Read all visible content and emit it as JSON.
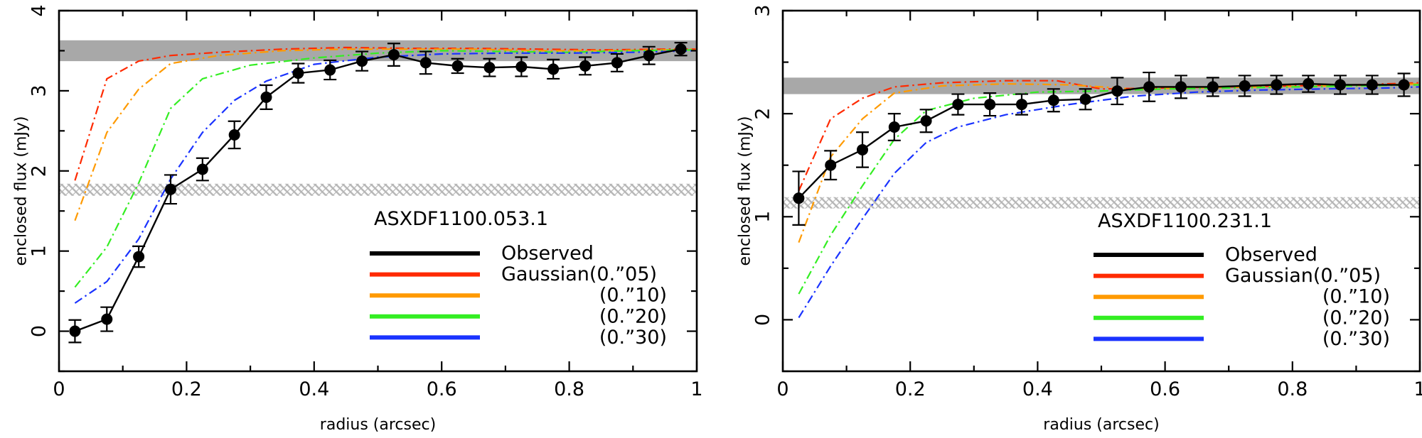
{
  "chart_data": [
    {
      "type": "line",
      "title": "ASXDF1100.053.1",
      "xlabel": "radius (arcsec)",
      "ylabel": "enclosed flux (mJy)",
      "xlim": [
        0,
        1
      ],
      "ylim": [
        -0.5,
        4
      ],
      "xticks": [
        "0",
        "0.2",
        "0.4",
        "0.6",
        "0.8",
        "1"
      ],
      "yticks": [
        "0",
        "1",
        "2",
        "3",
        "4"
      ],
      "bands": [
        {
          "name": "total-flux-band",
          "style": "solid",
          "color": "#a8a8a8",
          "y0": 3.37,
          "y1": 3.63
        },
        {
          "name": "peak-flux-band",
          "style": "hatched",
          "color": "#bdbdbd",
          "y0": 1.69,
          "y1": 1.84
        }
      ],
      "observed": {
        "x": [
          0.025,
          0.075,
          0.125,
          0.175,
          0.225,
          0.275,
          0.325,
          0.375,
          0.425,
          0.475,
          0.525,
          0.575,
          0.625,
          0.675,
          0.725,
          0.775,
          0.825,
          0.875,
          0.925,
          0.975
        ],
        "y": [
          0.0,
          0.15,
          0.93,
          1.77,
          2.02,
          2.45,
          2.92,
          3.22,
          3.26,
          3.37,
          3.45,
          3.35,
          3.31,
          3.29,
          3.3,
          3.27,
          3.31,
          3.35,
          3.44,
          3.52
        ],
        "err": [
          0.14,
          0.15,
          0.13,
          0.18,
          0.14,
          0.17,
          0.15,
          0.12,
          0.12,
          0.12,
          0.14,
          0.14,
          0.09,
          0.11,
          0.12,
          0.12,
          0.11,
          0.11,
          0.11,
          0.08
        ]
      },
      "series": [
        {
          "name": "Gaussian(0.”05)",
          "color": "#ff2a00",
          "x": [
            0.025,
            0.075,
            0.125,
            0.175,
            0.25,
            0.35,
            0.45,
            0.55,
            0.65,
            0.75,
            0.85,
            0.95,
            1.0
          ],
          "y": [
            1.88,
            3.15,
            3.37,
            3.44,
            3.48,
            3.52,
            3.54,
            3.53,
            3.53,
            3.52,
            3.51,
            3.52,
            3.52
          ]
        },
        {
          "name": "(0.”10)",
          "color": "#ff9a00",
          "x": [
            0.025,
            0.075,
            0.125,
            0.175,
            0.25,
            0.35,
            0.45,
            0.55,
            0.65,
            0.75,
            0.85,
            0.95,
            1.0
          ],
          "y": [
            1.38,
            2.48,
            3.02,
            3.34,
            3.44,
            3.5,
            3.52,
            3.52,
            3.52,
            3.5,
            3.5,
            3.51,
            3.52
          ]
        },
        {
          "name": "(0.”20)",
          "color": "#33ee22",
          "x": [
            0.025,
            0.075,
            0.125,
            0.175,
            0.225,
            0.3,
            0.4,
            0.5,
            0.6,
            0.7,
            0.8,
            0.9,
            1.0
          ],
          "y": [
            0.55,
            1.05,
            1.85,
            2.78,
            3.15,
            3.32,
            3.41,
            3.47,
            3.5,
            3.49,
            3.48,
            3.5,
            3.51
          ]
        },
        {
          "name": "(0.”30)",
          "color": "#1a33ff",
          "x": [
            0.025,
            0.075,
            0.125,
            0.175,
            0.225,
            0.275,
            0.325,
            0.4,
            0.5,
            0.6,
            0.7,
            0.8,
            0.9,
            1.0
          ],
          "y": [
            0.35,
            0.62,
            1.15,
            1.9,
            2.48,
            2.88,
            3.12,
            3.33,
            3.42,
            3.46,
            3.47,
            3.47,
            3.48,
            3.5
          ]
        }
      ],
      "legend": {
        "placement": "lower-right",
        "entries": [
          "Observed",
          "Gaussian(0.”05)",
          "(0.”10)",
          "(0.”20)",
          "(0.”30)"
        ],
        "colors": [
          "#000000",
          "#ff2a00",
          "#ff9a00",
          "#33ee22",
          "#1a33ff"
        ]
      }
    },
    {
      "type": "line",
      "title": "ASXDF1100.231.1",
      "xlabel": "radius (arcsec)",
      "ylabel": "enclosed flux (mJy)",
      "xlim": [
        0,
        1
      ],
      "ylim": [
        -0.5,
        3
      ],
      "xticks": [
        "0",
        "0.2",
        "0.4",
        "0.6",
        "0.8",
        "1"
      ],
      "yticks": [
        "0",
        "1",
        "2",
        "3"
      ],
      "bands": [
        {
          "name": "total-flux-band",
          "style": "solid",
          "color": "#a8a8a8",
          "y0": 2.19,
          "y1": 2.35
        },
        {
          "name": "peak-flux-band",
          "style": "hatched",
          "color": "#bdbdbd",
          "y0": 1.08,
          "y1": 1.19
        }
      ],
      "observed": {
        "x": [
          0.025,
          0.075,
          0.125,
          0.175,
          0.225,
          0.275,
          0.325,
          0.375,
          0.425,
          0.475,
          0.525,
          0.575,
          0.625,
          0.675,
          0.725,
          0.775,
          0.825,
          0.875,
          0.925,
          0.975
        ],
        "y": [
          1.18,
          1.5,
          1.65,
          1.87,
          1.93,
          2.09,
          2.09,
          2.09,
          2.13,
          2.14,
          2.22,
          2.26,
          2.26,
          2.26,
          2.27,
          2.28,
          2.29,
          2.28,
          2.28,
          2.28
        ],
        "err": [
          0.26,
          0.14,
          0.17,
          0.13,
          0.11,
          0.1,
          0.11,
          0.1,
          0.11,
          0.1,
          0.13,
          0.14,
          0.11,
          0.09,
          0.1,
          0.09,
          0.08,
          0.09,
          0.09,
          0.11
        ]
      },
      "series": [
        {
          "name": "Gaussian(0.”05)",
          "color": "#ff2a00",
          "x": [
            0.025,
            0.075,
            0.125,
            0.175,
            0.25,
            0.35,
            0.43,
            0.5,
            0.6,
            0.7,
            0.8,
            0.9,
            1.0
          ],
          "y": [
            1.25,
            1.95,
            2.15,
            2.26,
            2.3,
            2.32,
            2.32,
            2.24,
            2.25,
            2.26,
            2.27,
            2.28,
            2.3
          ]
        },
        {
          "name": "(0.”10)",
          "color": "#ff9a00",
          "x": [
            0.025,
            0.075,
            0.125,
            0.175,
            0.25,
            0.35,
            0.45,
            0.55,
            0.65,
            0.75,
            0.85,
            0.95,
            1.0
          ],
          "y": [
            0.75,
            1.58,
            1.95,
            2.2,
            2.27,
            2.29,
            2.28,
            2.24,
            2.25,
            2.26,
            2.27,
            2.28,
            2.29
          ]
        },
        {
          "name": "(0.”20)",
          "color": "#33ee22",
          "x": [
            0.025,
            0.075,
            0.125,
            0.175,
            0.225,
            0.3,
            0.4,
            0.5,
            0.6,
            0.7,
            0.8,
            0.9,
            1.0
          ],
          "y": [
            0.25,
            0.82,
            1.3,
            1.75,
            2.03,
            2.15,
            2.21,
            2.22,
            2.24,
            2.25,
            2.26,
            2.27,
            2.28
          ]
        },
        {
          "name": "(0.”30)",
          "color": "#1a33ff",
          "x": [
            0.025,
            0.075,
            0.125,
            0.175,
            0.225,
            0.275,
            0.35,
            0.45,
            0.55,
            0.65,
            0.75,
            0.85,
            0.95,
            1.0
          ],
          "y": [
            0.02,
            0.52,
            0.98,
            1.42,
            1.72,
            1.87,
            1.99,
            2.09,
            2.17,
            2.21,
            2.23,
            2.24,
            2.25,
            2.26
          ]
        }
      ],
      "legend": {
        "placement": "lower-right",
        "entries": [
          "Observed",
          "Gaussian(0.”05)",
          "(0.”10)",
          "(0.”20)",
          "(0.”30)"
        ],
        "colors": [
          "#000000",
          "#ff2a00",
          "#ff9a00",
          "#33ee22",
          "#1a33ff"
        ]
      }
    }
  ]
}
